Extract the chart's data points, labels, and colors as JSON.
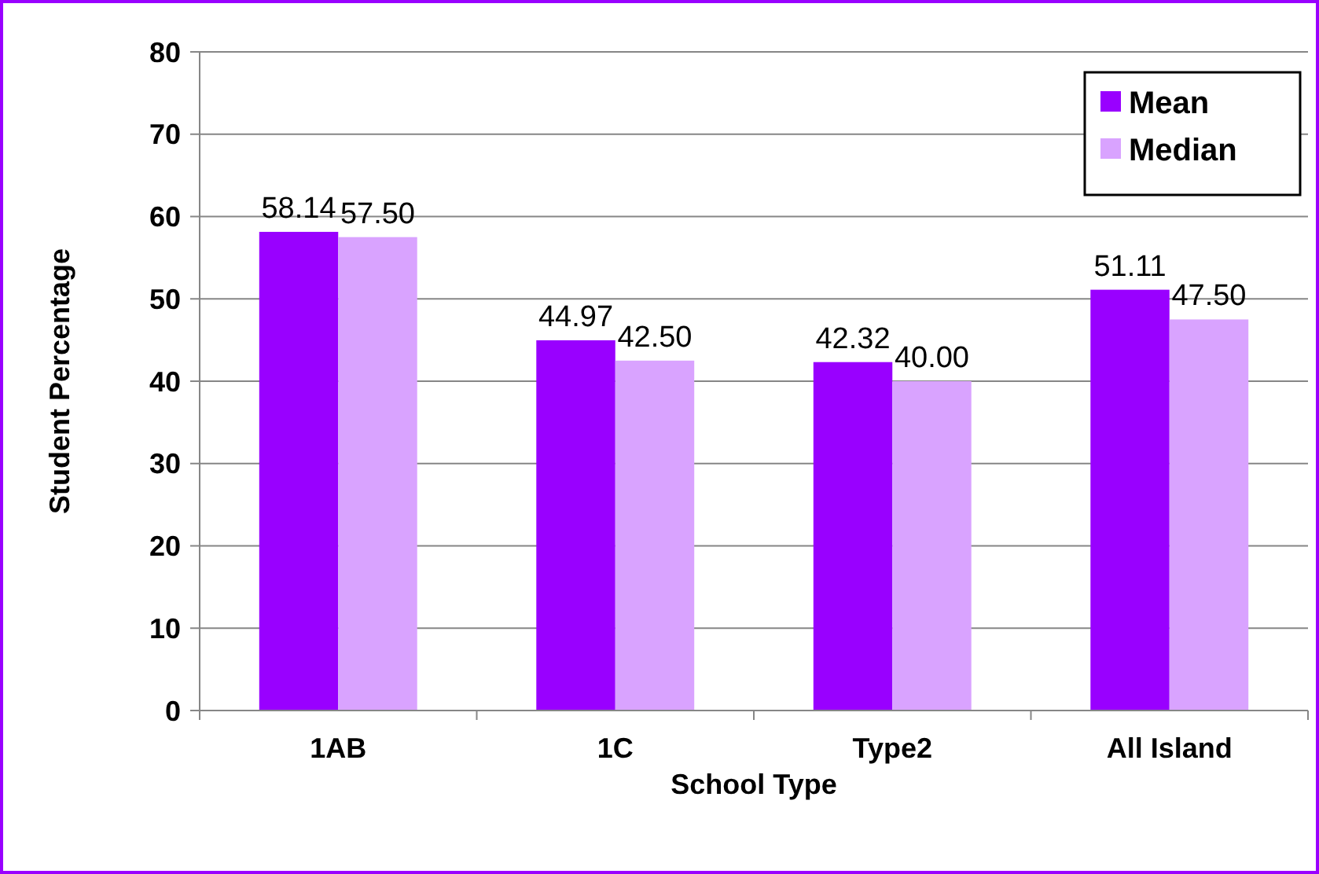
{
  "chart_data": {
    "type": "bar",
    "xlabel": "School Type",
    "ylabel": "Student Percentage",
    "categories": [
      "1AB",
      "1C",
      "Type2",
      "All Island"
    ],
    "series": [
      {
        "name": "Mean",
        "color": "#9900ff",
        "values": [
          58.14,
          44.97,
          42.32,
          51.11
        ],
        "value_labels": [
          "58.14",
          "44.97",
          "42.32",
          "51.11"
        ]
      },
      {
        "name": "Median",
        "color": "#d9a3ff",
        "values": [
          57.5,
          42.5,
          40,
          47.5
        ],
        "value_labels": [
          "57.50",
          "42.50",
          "40.00",
          "47.50"
        ]
      }
    ],
    "ylim": [
      0,
      80
    ],
    "yticks": [
      0,
      10,
      20,
      30,
      40,
      50,
      60,
      70,
      80
    ],
    "grid": "y",
    "legend": "top right"
  }
}
